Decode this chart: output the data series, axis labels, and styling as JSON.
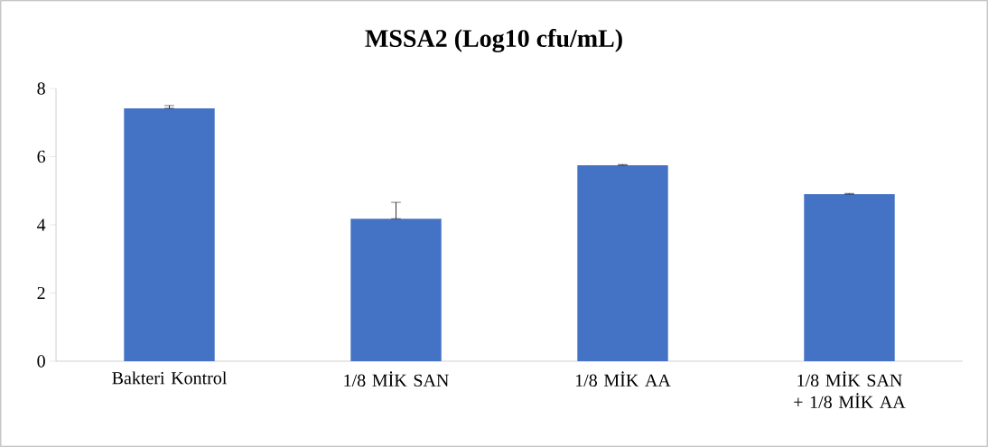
{
  "chart_data": {
    "type": "bar",
    "title": "MSSA2 (Log10 cfu/mL)",
    "categories": [
      "Bakteri Kontrol",
      "1/8 MİK SAN",
      "1/8 MİK AA",
      "1/8 MİK SAN + 1/8 MİK AA"
    ],
    "values": [
      7.42,
      4.18,
      5.75,
      4.9
    ],
    "errors": [
      [
        7.42,
        7.5
      ],
      [
        4.18,
        4.66
      ],
      [
        5.75,
        5.77
      ],
      [
        4.9,
        4.92
      ]
    ],
    "color": "#4472c4",
    "ylim": [
      0,
      8
    ],
    "yticks": [
      0,
      2,
      4,
      6,
      8
    ],
    "grid": false
  }
}
